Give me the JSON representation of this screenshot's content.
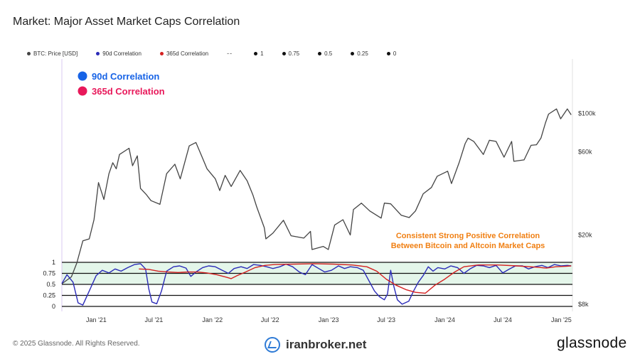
{
  "page": {
    "title": "Market: Major Asset Market Caps Correlation"
  },
  "legend": {
    "items": [
      {
        "label": "BTC: Price [USD]",
        "color": "#444444",
        "kind": "dot"
      },
      {
        "label": "90d Correlation",
        "color": "#2b2bb8",
        "kind": "dot"
      },
      {
        "label": "365d Correlation",
        "color": "#d42020",
        "kind": "dot"
      },
      {
        "label": "--",
        "color": "#444444",
        "kind": "dash"
      },
      {
        "label": "1",
        "color": "#111111",
        "kind": "dot"
      },
      {
        "label": "0.75",
        "color": "#111111",
        "kind": "dot"
      },
      {
        "label": "0.5",
        "color": "#111111",
        "kind": "dot"
      },
      {
        "label": "0.25",
        "color": "#111111",
        "kind": "dot"
      },
      {
        "label": "0",
        "color": "#111111",
        "kind": "dot"
      }
    ]
  },
  "overlay": {
    "label_90d": "90d Correlation",
    "color_90d": "#1763e6",
    "label_365d": "365d Correlation",
    "color_365d": "#e8185a",
    "annotation_line1": "Consistent Strong Positive Correlation",
    "annotation_line2": "Between Bitcoin and Altcoin Market Caps",
    "annotation_color": "#f07f12"
  },
  "chart_data": {
    "type": "line",
    "title": "Market: Major Asset Market Caps Correlation",
    "x_ticks": [
      "Jan '21",
      "Jul '21",
      "Jan '22",
      "Jul '22",
      "Jan '23",
      "Jul '23",
      "Jan '24",
      "Jul '24",
      "Jan '25"
    ],
    "x_range": [
      "2020-09-15",
      "2025-02-05"
    ],
    "right_axis": {
      "label": "",
      "scale": "log",
      "ticks": [
        "$100k",
        "$60k",
        "$20k",
        "$8k"
      ],
      "tick_values": [
        100000,
        60000,
        20000,
        8000
      ]
    },
    "left_axis": {
      "label": "",
      "ticks": [
        "1",
        "0.75",
        "0.5",
        "0.25",
        "0"
      ],
      "tick_values": [
        1,
        0.75,
        0.5,
        0.25,
        0
      ],
      "range": [
        0,
        1
      ]
    },
    "band": {
      "from": 0.5,
      "to": 1,
      "color": "#e4f6ea"
    },
    "series": [
      {
        "name": "BTC: Price [USD]",
        "axis": "right",
        "color": "#444444",
        "points": [
          [
            "2020-09-15",
            10500
          ],
          [
            "2020-10-15",
            11500
          ],
          [
            "2020-11-01",
            13800
          ],
          [
            "2020-11-20",
            18500
          ],
          [
            "2020-12-10",
            19000
          ],
          [
            "2020-12-25",
            24500
          ],
          [
            "2021-01-08",
            40000
          ],
          [
            "2021-01-25",
            32000
          ],
          [
            "2021-02-10",
            45000
          ],
          [
            "2021-02-22",
            52000
          ],
          [
            "2021-03-05",
            48000
          ],
          [
            "2021-03-15",
            58000
          ],
          [
            "2021-04-14",
            63000
          ],
          [
            "2021-04-25",
            50000
          ],
          [
            "2021-05-10",
            57000
          ],
          [
            "2021-05-20",
            37000
          ],
          [
            "2021-06-08",
            34000
          ],
          [
            "2021-06-22",
            31500
          ],
          [
            "2021-07-20",
            30000
          ],
          [
            "2021-08-10",
            45000
          ],
          [
            "2021-09-05",
            51000
          ],
          [
            "2021-09-22",
            42000
          ],
          [
            "2021-10-20",
            65000
          ],
          [
            "2021-11-10",
            68000
          ],
          [
            "2021-11-28",
            57000
          ],
          [
            "2021-12-15",
            48000
          ],
          [
            "2022-01-10",
            42000
          ],
          [
            "2022-01-24",
            36000
          ],
          [
            "2022-02-10",
            44000
          ],
          [
            "2022-03-01",
            38000
          ],
          [
            "2022-03-29",
            47000
          ],
          [
            "2022-04-20",
            41000
          ],
          [
            "2022-05-08",
            34000
          ],
          [
            "2022-05-20",
            29000
          ],
          [
            "2022-06-13",
            22000
          ],
          [
            "2022-06-18",
            19000
          ],
          [
            "2022-07-10",
            20500
          ],
          [
            "2022-08-12",
            24300
          ],
          [
            "2022-09-05",
            19800
          ],
          [
            "2022-10-15",
            19200
          ],
          [
            "2022-11-05",
            21000
          ],
          [
            "2022-11-10",
            16500
          ],
          [
            "2022-12-15",
            17200
          ],
          [
            "2022-12-31",
            16500
          ],
          [
            "2023-01-20",
            22800
          ],
          [
            "2023-02-15",
            24500
          ],
          [
            "2023-03-10",
            20000
          ],
          [
            "2023-03-20",
            28000
          ],
          [
            "2023-04-14",
            30500
          ],
          [
            "2023-05-10",
            27500
          ],
          [
            "2023-06-15",
            25000
          ],
          [
            "2023-06-25",
            30500
          ],
          [
            "2023-07-15",
            30200
          ],
          [
            "2023-08-17",
            26000
          ],
          [
            "2023-09-11",
            25200
          ],
          [
            "2023-10-01",
            27500
          ],
          [
            "2023-10-25",
            34500
          ],
          [
            "2023-11-20",
            37500
          ],
          [
            "2023-12-08",
            43500
          ],
          [
            "2024-01-10",
            46500
          ],
          [
            "2024-01-22",
            39500
          ],
          [
            "2024-02-15",
            52000
          ],
          [
            "2024-03-05",
            67000
          ],
          [
            "2024-03-14",
            72000
          ],
          [
            "2024-04-01",
            69000
          ],
          [
            "2024-05-01",
            58000
          ],
          [
            "2024-05-20",
            70000
          ],
          [
            "2024-06-10",
            69000
          ],
          [
            "2024-07-05",
            56000
          ],
          [
            "2024-07-29",
            69000
          ],
          [
            "2024-08-05",
            53000
          ],
          [
            "2024-09-06",
            54000
          ],
          [
            "2024-09-28",
            65500
          ],
          [
            "2024-10-15",
            66000
          ],
          [
            "2024-10-29",
            72000
          ],
          [
            "2024-11-12",
            88000
          ],
          [
            "2024-11-22",
            99000
          ],
          [
            "2024-12-17",
            106000
          ],
          [
            "2024-12-30",
            93000
          ],
          [
            "2025-01-20",
            106000
          ],
          [
            "2025-02-01",
            98000
          ]
        ]
      },
      {
        "name": "90d Correlation",
        "axis": "left",
        "color": "#2b2bb8",
        "points": [
          [
            "2020-09-15",
            0.52
          ],
          [
            "2020-10-01",
            0.72
          ],
          [
            "2020-10-20",
            0.55
          ],
          [
            "2020-11-05",
            0.08
          ],
          [
            "2020-11-20",
            0.03
          ],
          [
            "2020-12-10",
            0.35
          ],
          [
            "2021-01-01",
            0.7
          ],
          [
            "2021-01-20",
            0.82
          ],
          [
            "2021-02-10",
            0.76
          ],
          [
            "2021-03-01",
            0.85
          ],
          [
            "2021-03-20",
            0.8
          ],
          [
            "2021-04-10",
            0.88
          ],
          [
            "2021-05-01",
            0.95
          ],
          [
            "2021-05-20",
            0.97
          ],
          [
            "2021-06-05",
            0.85
          ],
          [
            "2021-06-15",
            0.4
          ],
          [
            "2021-06-25",
            0.1
          ],
          [
            "2021-07-10",
            0.06
          ],
          [
            "2021-07-25",
            0.35
          ],
          [
            "2021-08-10",
            0.8
          ],
          [
            "2021-09-01",
            0.9
          ],
          [
            "2021-09-20",
            0.92
          ],
          [
            "2021-10-10",
            0.87
          ],
          [
            "2021-10-25",
            0.68
          ],
          [
            "2021-11-10",
            0.78
          ],
          [
            "2021-12-01",
            0.88
          ],
          [
            "2021-12-20",
            0.92
          ],
          [
            "2022-01-10",
            0.9
          ],
          [
            "2022-02-01",
            0.82
          ],
          [
            "2022-02-20",
            0.75
          ],
          [
            "2022-03-10",
            0.86
          ],
          [
            "2022-04-01",
            0.9
          ],
          [
            "2022-04-20",
            0.86
          ],
          [
            "2022-05-10",
            0.95
          ],
          [
            "2022-06-01",
            0.93
          ],
          [
            "2022-06-20",
            0.9
          ],
          [
            "2022-07-10",
            0.86
          ],
          [
            "2022-08-01",
            0.9
          ],
          [
            "2022-08-20",
            0.96
          ],
          [
            "2022-09-10",
            0.9
          ],
          [
            "2022-10-01",
            0.78
          ],
          [
            "2022-10-20",
            0.72
          ],
          [
            "2022-11-10",
            0.95
          ],
          [
            "2022-12-01",
            0.86
          ],
          [
            "2022-12-20",
            0.78
          ],
          [
            "2023-01-10",
            0.82
          ],
          [
            "2023-02-01",
            0.92
          ],
          [
            "2023-02-20",
            0.86
          ],
          [
            "2023-03-10",
            0.9
          ],
          [
            "2023-04-01",
            0.88
          ],
          [
            "2023-04-20",
            0.82
          ],
          [
            "2023-05-10",
            0.55
          ],
          [
            "2023-05-25",
            0.35
          ],
          [
            "2023-06-10",
            0.22
          ],
          [
            "2023-06-25",
            0.15
          ],
          [
            "2023-07-05",
            0.28
          ],
          [
            "2023-07-15",
            0.82
          ],
          [
            "2023-07-25",
            0.45
          ],
          [
            "2023-08-05",
            0.15
          ],
          [
            "2023-08-20",
            0.05
          ],
          [
            "2023-09-10",
            0.12
          ],
          [
            "2023-09-25",
            0.35
          ],
          [
            "2023-10-10",
            0.55
          ],
          [
            "2023-10-25",
            0.7
          ],
          [
            "2023-11-10",
            0.9
          ],
          [
            "2023-11-25",
            0.8
          ],
          [
            "2023-12-10",
            0.88
          ],
          [
            "2024-01-01",
            0.85
          ],
          [
            "2024-01-20",
            0.92
          ],
          [
            "2024-02-10",
            0.88
          ],
          [
            "2024-03-01",
            0.75
          ],
          [
            "2024-03-20",
            0.85
          ],
          [
            "2024-04-10",
            0.93
          ],
          [
            "2024-05-01",
            0.92
          ],
          [
            "2024-05-20",
            0.88
          ],
          [
            "2024-06-10",
            0.93
          ],
          [
            "2024-07-01",
            0.76
          ],
          [
            "2024-07-20",
            0.84
          ],
          [
            "2024-08-10",
            0.92
          ],
          [
            "2024-09-01",
            0.92
          ],
          [
            "2024-09-20",
            0.85
          ],
          [
            "2024-10-10",
            0.9
          ],
          [
            "2024-11-01",
            0.93
          ],
          [
            "2024-11-20",
            0.88
          ],
          [
            "2024-12-10",
            0.95
          ],
          [
            "2025-01-01",
            0.92
          ],
          [
            "2025-01-20",
            0.93
          ],
          [
            "2025-02-01",
            0.92
          ]
        ]
      },
      {
        "name": "365d Correlation",
        "axis": "left",
        "color": "#d42020",
        "points": [
          [
            "2021-05-15",
            0.85
          ],
          [
            "2021-06-15",
            0.84
          ],
          [
            "2021-07-15",
            0.8
          ],
          [
            "2021-08-15",
            0.78
          ],
          [
            "2021-09-15",
            0.77
          ],
          [
            "2021-10-15",
            0.78
          ],
          [
            "2021-11-15",
            0.78
          ],
          [
            "2021-12-15",
            0.76
          ],
          [
            "2022-01-15",
            0.72
          ],
          [
            "2022-02-15",
            0.66
          ],
          [
            "2022-03-01",
            0.63
          ],
          [
            "2022-03-20",
            0.7
          ],
          [
            "2022-04-15",
            0.78
          ],
          [
            "2022-05-15",
            0.88
          ],
          [
            "2022-06-15",
            0.93
          ],
          [
            "2022-07-15",
            0.95
          ],
          [
            "2022-09-15",
            0.96
          ],
          [
            "2022-11-15",
            0.97
          ],
          [
            "2023-01-15",
            0.96
          ],
          [
            "2023-03-15",
            0.94
          ],
          [
            "2023-05-01",
            0.9
          ],
          [
            "2023-06-01",
            0.8
          ],
          [
            "2023-07-01",
            0.62
          ],
          [
            "2023-08-01",
            0.48
          ],
          [
            "2023-09-01",
            0.38
          ],
          [
            "2023-10-01",
            0.32
          ],
          [
            "2023-11-01",
            0.3
          ],
          [
            "2023-12-01",
            0.48
          ],
          [
            "2024-01-01",
            0.62
          ],
          [
            "2024-02-01",
            0.78
          ],
          [
            "2024-03-01",
            0.9
          ],
          [
            "2024-04-15",
            0.94
          ],
          [
            "2024-06-15",
            0.94
          ],
          [
            "2024-08-15",
            0.92
          ],
          [
            "2024-10-15",
            0.89
          ],
          [
            "2024-11-15",
            0.87
          ],
          [
            "2024-12-15",
            0.9
          ],
          [
            "2025-01-15",
            0.91
          ],
          [
            "2025-02-01",
            0.92
          ]
        ]
      }
    ],
    "reference_lines": [
      1,
      0.75,
      0.5,
      0.25,
      0
    ],
    "grid": false,
    "legend_position": "top-left"
  },
  "footer": {
    "copyright": "© 2025 Glassnode. All Rights Reserved.",
    "watermark": "iranbroker.net",
    "brand": "glassnode"
  }
}
